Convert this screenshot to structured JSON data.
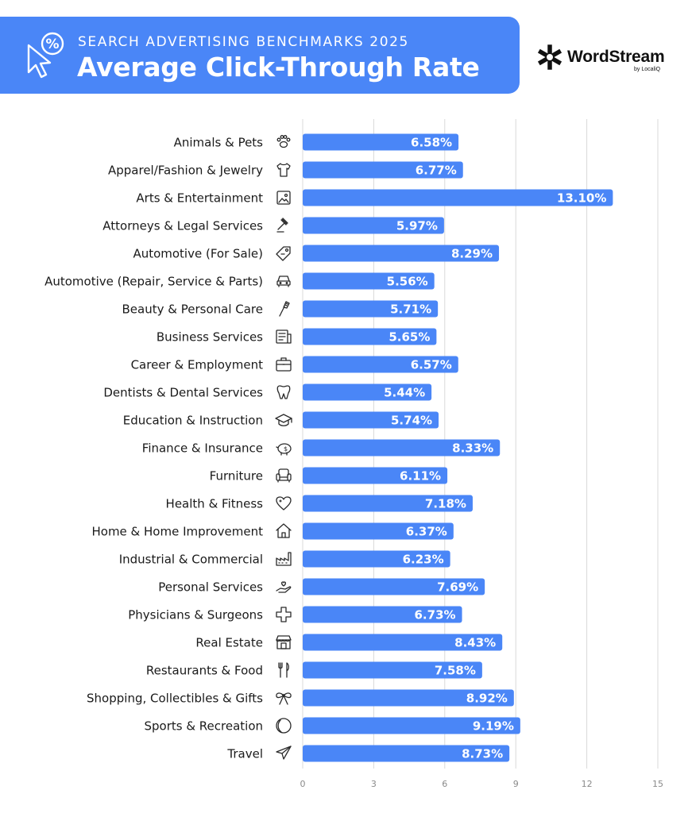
{
  "header": {
    "subtitle": "SEARCH ADVERTISING BENCHMARKS 2025",
    "title": "Average Click-Through Rate",
    "icon": "cursor-percent-icon"
  },
  "brand": {
    "name": "WordStream",
    "byline": "by LocaliQ",
    "icon": "wordstream-logo-icon"
  },
  "colors": {
    "accent": "#4a86f7",
    "bar": "#4a86f7",
    "grid": "#d9d9d9"
  },
  "chart_data": {
    "type": "bar",
    "orientation": "horizontal",
    "categories": [
      "Animals & Pets",
      "Apparel/Fashion & Jewelry",
      "Arts & Entertainment",
      "Attorneys & Legal Services",
      "Automotive (For Sale)",
      "Automotive (Repair, Service & Parts)",
      "Beauty & Personal Care",
      "Business Services",
      "Career & Employment",
      "Dentists & Dental Services",
      "Education & Instruction",
      "Finance & Insurance",
      "Furniture",
      "Health & Fitness",
      "Home & Home Improvement",
      "Industrial & Commercial",
      "Personal Services",
      "Physicians & Surgeons",
      "Real Estate",
      "Restaurants & Food",
      "Shopping, Collectibles & Gifts",
      "Sports & Recreation",
      "Travel"
    ],
    "values": [
      6.58,
      6.77,
      13.1,
      5.97,
      8.29,
      5.56,
      5.71,
      5.65,
      6.57,
      5.44,
      5.74,
      8.33,
      6.11,
      7.18,
      6.37,
      6.23,
      7.69,
      6.73,
      8.43,
      7.58,
      8.92,
      9.19,
      8.73
    ],
    "labels": [
      "6.58%",
      "6.77%",
      "13.10%",
      "5.97%",
      "8.29%",
      "5.56%",
      "5.71%",
      "5.65%",
      "6.57%",
      "5.44%",
      "5.74%",
      "8.33%",
      "6.11%",
      "7.18%",
      "6.37%",
      "6.23%",
      "7.69%",
      "6.73%",
      "8.43%",
      "7.58%",
      "8.92%",
      "9.19%",
      "8.73%"
    ],
    "icons": [
      "paw-icon",
      "shirt-icon",
      "picture-icon",
      "gavel-icon",
      "price-tag-icon",
      "car-icon",
      "brush-icon",
      "document-icon",
      "briefcase-icon",
      "tooth-icon",
      "graduation-cap-icon",
      "piggy-bank-icon",
      "armchair-icon",
      "heart-icon",
      "house-icon",
      "factory-icon",
      "helping-hand-icon",
      "medical-cross-icon",
      "storefront-icon",
      "fork-knife-icon",
      "gift-bow-icon",
      "ball-icon",
      "airplane-icon"
    ],
    "xticks": [
      "0",
      "3",
      "6",
      "9",
      "12",
      "15"
    ],
    "xlim": [
      0,
      15
    ],
    "grid": true,
    "legend": "none",
    "title": "Average Click-Through Rate",
    "xlabel": "",
    "ylabel": ""
  }
}
